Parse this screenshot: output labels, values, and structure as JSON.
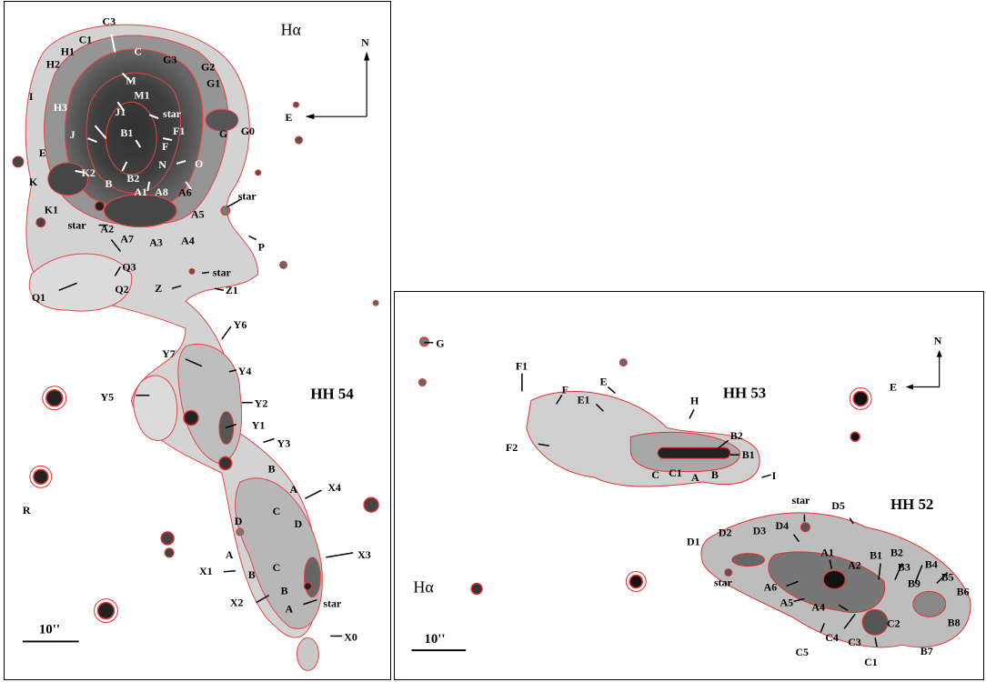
{
  "left_panel": {
    "filter": "Hα",
    "object": "HH 54",
    "north": "N",
    "east": "E",
    "scale": "10''",
    "labels_black": [
      "C3",
      "C1",
      "H1",
      "H2",
      "I",
      "E",
      "K",
      "K1",
      "star",
      "A2",
      "Q3",
      "Q2",
      "Q1",
      "Z",
      "Z1",
      "star",
      "P",
      "G3",
      "G2",
      "G1",
      "G0",
      "G",
      "A4",
      "A5",
      "A6",
      "star",
      "Y6",
      "Y7",
      "Y4",
      "Y5",
      "Y2",
      "Y1",
      "Y3",
      "B",
      "A",
      "X4",
      "C",
      "D",
      "D",
      "A",
      "X1",
      "B",
      "C",
      "X3",
      "X2",
      "B",
      "A",
      "star",
      "X0",
      "R"
    ],
    "labels_white": [
      "C",
      "M",
      "M1",
      "J1",
      "star",
      "H3",
      "J",
      "B1",
      "F1",
      "F",
      "N",
      "O",
      "K2",
      "B2",
      "B",
      "A1",
      "A8",
      "A3",
      "A7"
    ]
  },
  "right_panel": {
    "filter": "Hα",
    "object1": "HH 53",
    "object2": "HH 52",
    "north": "N",
    "east": "E",
    "scale": "10''",
    "labels": [
      "G",
      "F1",
      "F",
      "E",
      "E1",
      "F2",
      "H",
      "B2",
      "B1",
      "C",
      "C1",
      "A",
      "B",
      "I",
      "star",
      "D5",
      "D4",
      "D1",
      "D2",
      "D3",
      "star",
      "A1",
      "A2",
      "A6",
      "A5",
      "A4",
      "B1",
      "B2",
      "B3",
      "B4",
      "B5",
      "B6",
      "B9",
      "B8",
      "B7",
      "C2",
      "C4",
      "C3",
      "C5",
      "C1"
    ]
  }
}
